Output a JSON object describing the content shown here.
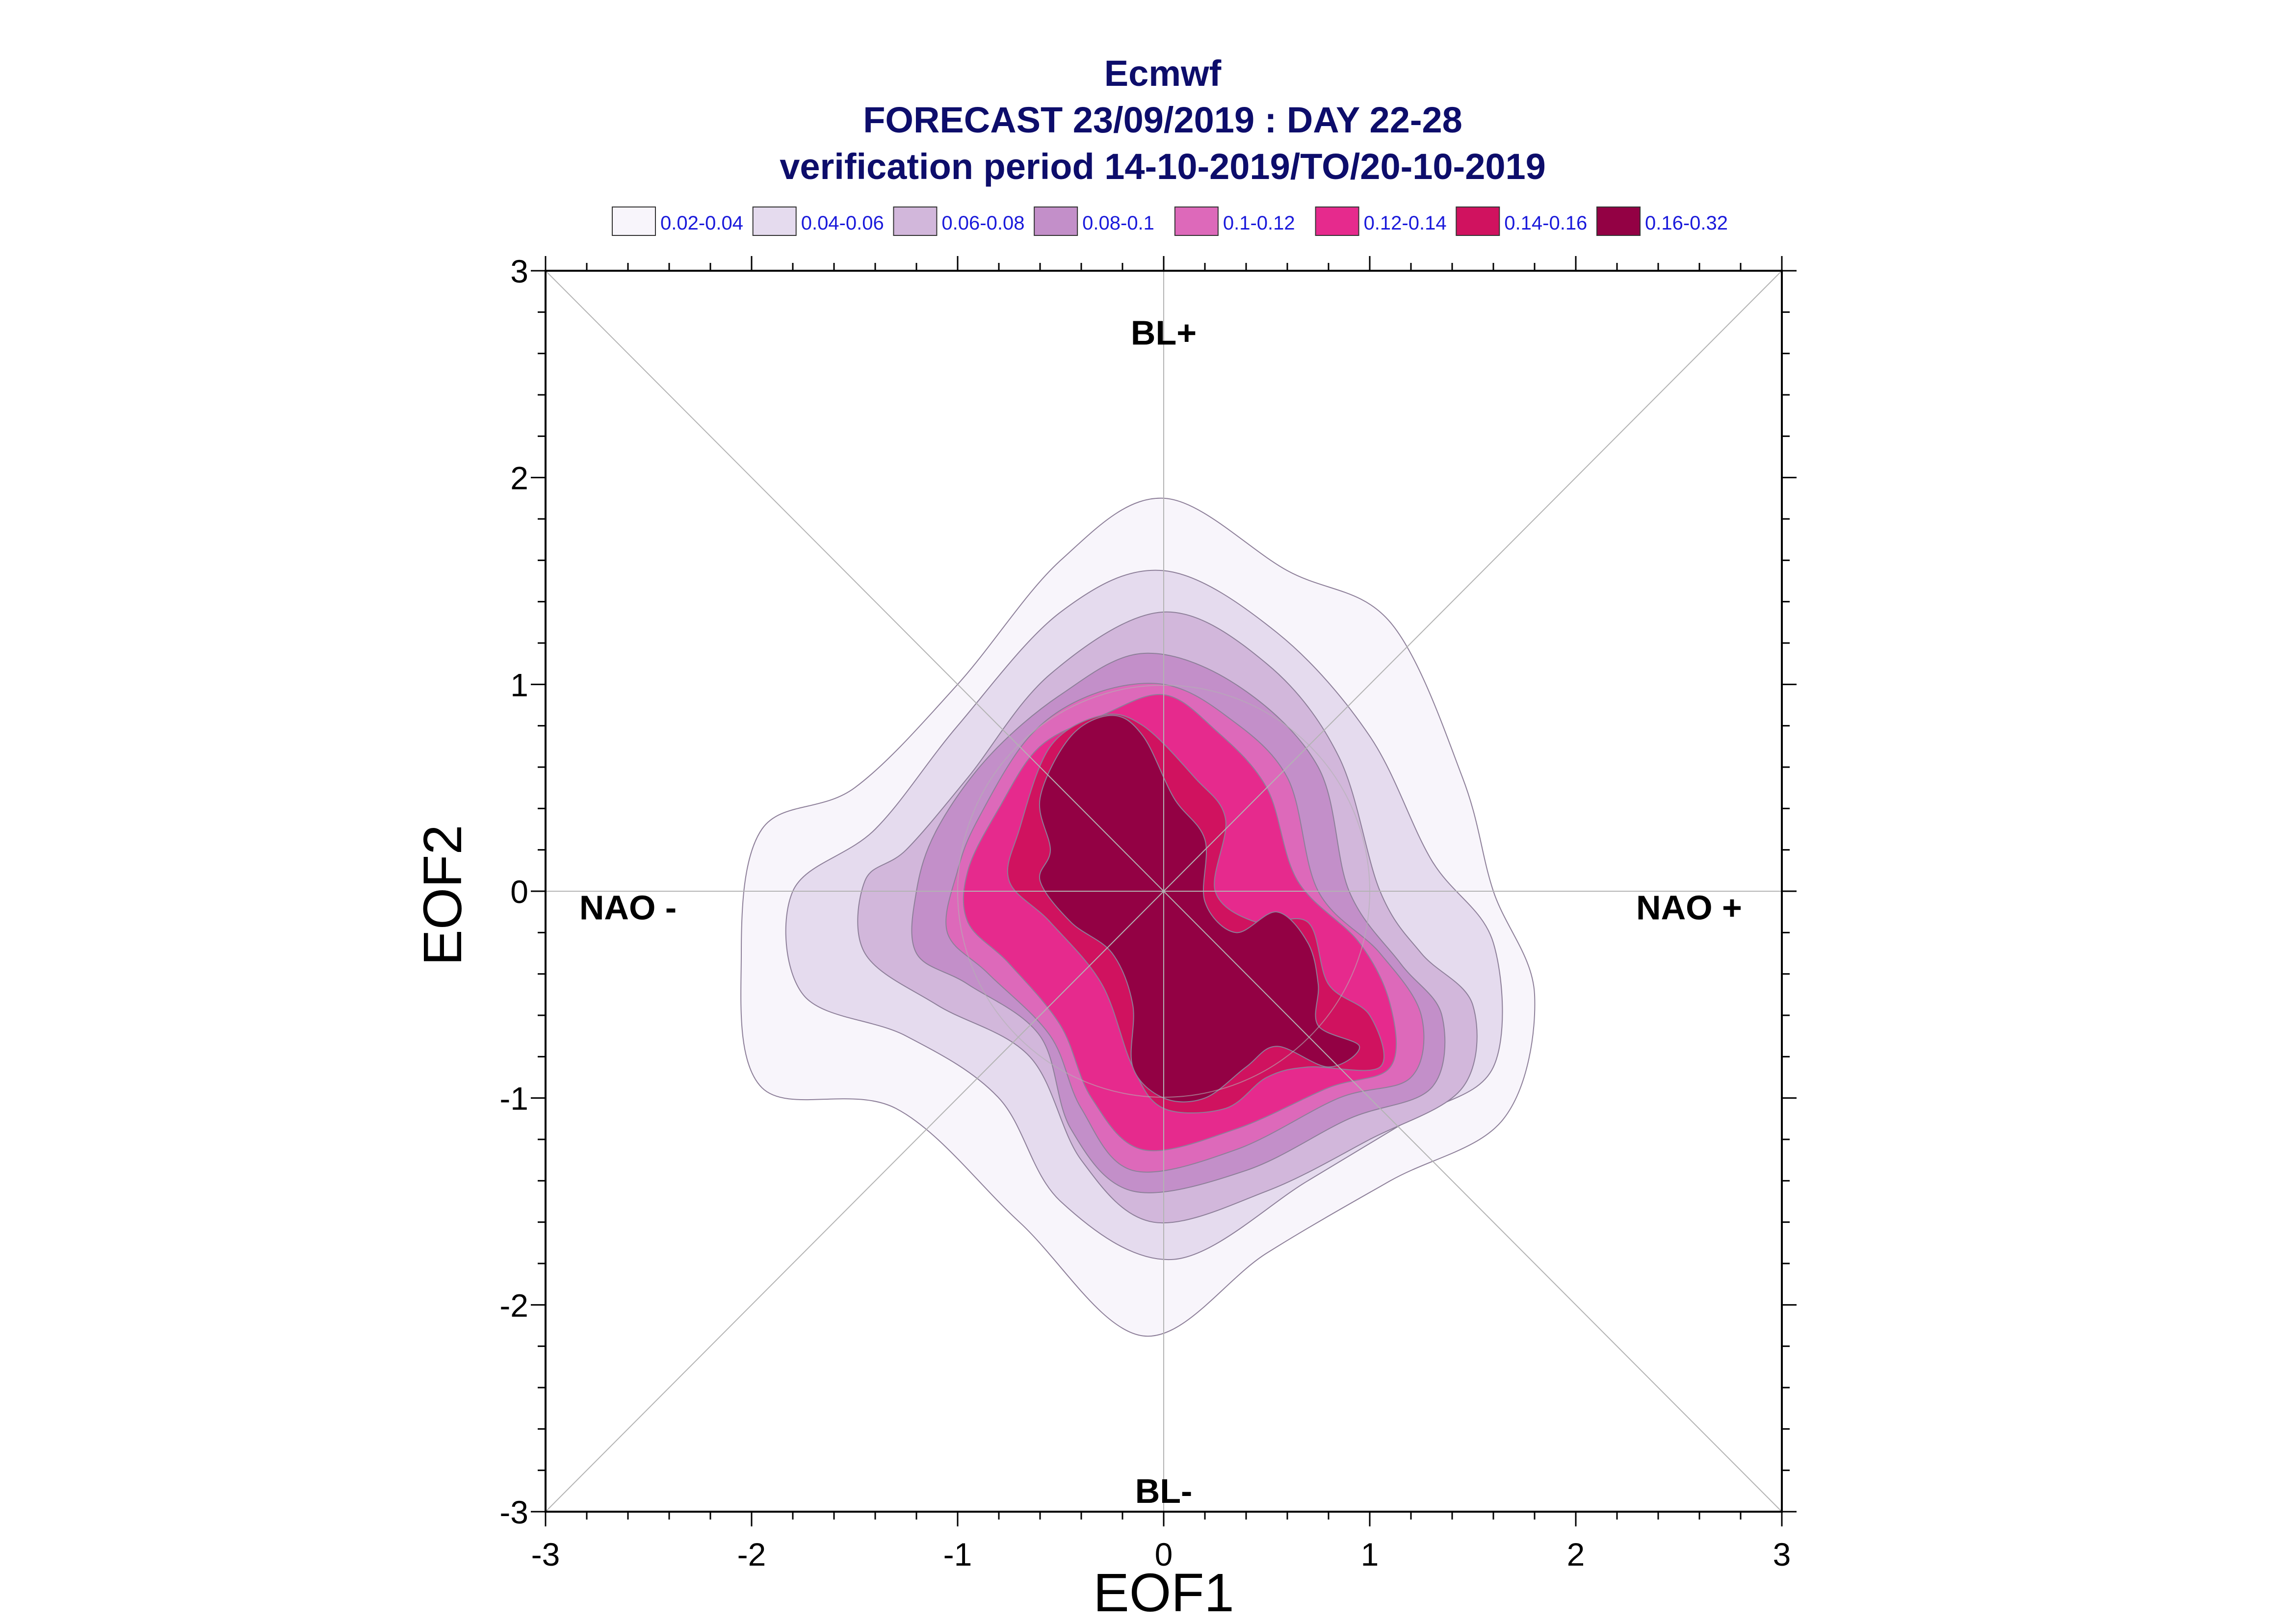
{
  "chart_data": {
    "type": "contour",
    "title_lines": [
      "Ecmwf",
      "FORECAST 23/09/2019 : DAY 22-28",
      "verification period 14-10-2019/TO/20-10-2019"
    ],
    "xlabel": "EOF1",
    "ylabel": "EOF2",
    "xlim": [
      -3,
      3
    ],
    "ylim": [
      -3,
      3
    ],
    "ticks": [
      -3,
      -2,
      -1,
      0,
      1,
      2,
      3
    ],
    "tick_labels": [
      "-3",
      "-2",
      "-1",
      "0",
      "1",
      "2",
      "3"
    ],
    "minor_tick_step": 0.2,
    "grid": "diagonals and zero lines",
    "regions": [
      {
        "label": "BL+",
        "x": 0,
        "y": 2.7
      },
      {
        "label": "BL-",
        "x": 0,
        "y": -2.9
      },
      {
        "label": "NAO -",
        "x": -2.6,
        "y": -0.08
      },
      {
        "label": "NAO +",
        "x": 2.55,
        "y": -0.08
      }
    ],
    "reference_circle_radius": 1.0,
    "legend_placement": "top",
    "levels": [
      {
        "label": "0.02-0.04",
        "color": "#f8f5fb",
        "contour": [
          [
            -1.5,
            0.5
          ],
          [
            -1.0,
            1.0
          ],
          [
            -0.5,
            1.6
          ],
          [
            0,
            1.9
          ],
          [
            0.6,
            1.55
          ],
          [
            1.1,
            1.3
          ],
          [
            1.45,
            0.55
          ],
          [
            1.6,
            0.0
          ],
          [
            1.8,
            -0.5
          ],
          [
            1.65,
            -1.1
          ],
          [
            1.1,
            -1.4
          ],
          [
            0.5,
            -1.75
          ],
          [
            -0.1,
            -2.15
          ],
          [
            -0.7,
            -1.6
          ],
          [
            -1.3,
            -1.05
          ],
          [
            -1.95,
            -0.95
          ],
          [
            -2.05,
            -0.3
          ],
          [
            -1.95,
            0.3
          ]
        ]
      },
      {
        "label": "0.04-0.06",
        "color": "#e5dbee",
        "contour": [
          [
            -1.4,
            0.3
          ],
          [
            -1.0,
            0.8
          ],
          [
            -0.5,
            1.35
          ],
          [
            0,
            1.55
          ],
          [
            0.55,
            1.25
          ],
          [
            1.0,
            0.75
          ],
          [
            1.3,
            0.15
          ],
          [
            1.6,
            -0.25
          ],
          [
            1.6,
            -0.85
          ],
          [
            1.2,
            -1.1
          ],
          [
            0.7,
            -1.4
          ],
          [
            0.05,
            -1.78
          ],
          [
            -0.5,
            -1.5
          ],
          [
            -0.8,
            -1.0
          ],
          [
            -1.25,
            -0.7
          ],
          [
            -1.75,
            -0.5
          ],
          [
            -1.8,
            0.0
          ]
        ]
      },
      {
        "label": "0.06-0.08",
        "color": "#d2b7db",
        "contour": [
          [
            -1.25,
            0.2
          ],
          [
            -0.95,
            0.55
          ],
          [
            -0.55,
            1.05
          ],
          [
            0,
            1.35
          ],
          [
            0.5,
            1.1
          ],
          [
            0.85,
            0.65
          ],
          [
            1.05,
            0.0
          ],
          [
            1.25,
            -0.3
          ],
          [
            1.5,
            -0.55
          ],
          [
            1.45,
            -0.95
          ],
          [
            1.0,
            -1.2
          ],
          [
            0.5,
            -1.45
          ],
          [
            -0.05,
            -1.6
          ],
          [
            -0.4,
            -1.3
          ],
          [
            -0.65,
            -0.8
          ],
          [
            -1.1,
            -0.55
          ],
          [
            -1.45,
            -0.3
          ],
          [
            -1.45,
            0.05
          ]
        ]
      },
      {
        "label": "0.08-0.1",
        "color": "#c38fc9",
        "contour": [
          [
            -1.1,
            0.3
          ],
          [
            -0.85,
            0.65
          ],
          [
            -0.5,
            0.95
          ],
          [
            -0.1,
            1.15
          ],
          [
            0.35,
            1.0
          ],
          [
            0.75,
            0.6
          ],
          [
            0.9,
            0.0
          ],
          [
            1.15,
            -0.35
          ],
          [
            1.35,
            -0.6
          ],
          [
            1.3,
            -0.95
          ],
          [
            0.9,
            -1.1
          ],
          [
            0.4,
            -1.35
          ],
          [
            -0.15,
            -1.45
          ],
          [
            -0.45,
            -1.15
          ],
          [
            -0.6,
            -0.7
          ],
          [
            -0.95,
            -0.45
          ],
          [
            -1.2,
            -0.3
          ],
          [
            -1.2,
            0.0
          ]
        ]
      },
      {
        "label": "0.1-0.12",
        "color": "#dd69ba",
        "contour": [
          [
            -0.9,
            0.35
          ],
          [
            -0.65,
            0.75
          ],
          [
            -0.35,
            0.95
          ],
          [
            0,
            1.0
          ],
          [
            0.3,
            0.85
          ],
          [
            0.6,
            0.55
          ],
          [
            0.75,
            0.0
          ],
          [
            1.05,
            -0.3
          ],
          [
            1.25,
            -0.6
          ],
          [
            1.2,
            -0.9
          ],
          [
            0.85,
            -1.0
          ],
          [
            0.35,
            -1.25
          ],
          [
            -0.15,
            -1.35
          ],
          [
            -0.4,
            -1.05
          ],
          [
            -0.55,
            -0.7
          ],
          [
            -0.85,
            -0.4
          ],
          [
            -1.05,
            -0.2
          ],
          [
            -1.0,
            0.1
          ]
        ]
      },
      {
        "label": "0.12-0.14",
        "color": "#e62a8d",
        "contour": [
          [
            -0.8,
            0.4
          ],
          [
            -0.6,
            0.7
          ],
          [
            -0.3,
            0.85
          ],
          [
            0,
            0.95
          ],
          [
            0.25,
            0.78
          ],
          [
            0.5,
            0.5
          ],
          [
            0.65,
            0.05
          ],
          [
            0.95,
            -0.25
          ],
          [
            1.1,
            -0.55
          ],
          [
            1.1,
            -0.85
          ],
          [
            0.8,
            -0.95
          ],
          [
            0.35,
            -1.15
          ],
          [
            -0.1,
            -1.25
          ],
          [
            -0.35,
            -1.0
          ],
          [
            -0.5,
            -0.65
          ],
          [
            -0.75,
            -0.35
          ],
          [
            -0.95,
            -0.15
          ],
          [
            -0.95,
            0.1
          ]
        ]
      },
      {
        "label": "0.14-0.16",
        "color": "#d0125f",
        "contour": [
          [
            -0.7,
            0.3
          ],
          [
            -0.55,
            0.7
          ],
          [
            -0.3,
            0.85
          ],
          [
            -0.1,
            0.8
          ],
          [
            0.15,
            0.55
          ],
          [
            0.3,
            0.35
          ],
          [
            0.25,
            0.0
          ],
          [
            0.45,
            -0.15
          ],
          [
            0.7,
            -0.15
          ],
          [
            0.8,
            -0.45
          ],
          [
            1.0,
            -0.6
          ],
          [
            1.05,
            -0.85
          ],
          [
            0.7,
            -0.85
          ],
          [
            0.5,
            -0.9
          ],
          [
            0.3,
            -1.05
          ],
          [
            0.0,
            -1.05
          ],
          [
            -0.15,
            -0.85
          ],
          [
            -0.3,
            -0.45
          ],
          [
            -0.55,
            -0.15
          ],
          [
            -0.75,
            0.05
          ]
        ]
      },
      {
        "label": "0.16-0.32",
        "color": "#930144",
        "contour": [
          [
            -0.55,
            0.2
          ],
          [
            -0.6,
            0.45
          ],
          [
            -0.45,
            0.75
          ],
          [
            -0.25,
            0.85
          ],
          [
            -0.1,
            0.75
          ],
          [
            0.05,
            0.45
          ],
          [
            0.2,
            0.25
          ],
          [
            0.2,
            -0.05
          ],
          [
            0.35,
            -0.2
          ],
          [
            0.55,
            -0.1
          ],
          [
            0.7,
            -0.25
          ],
          [
            0.75,
            -0.45
          ],
          [
            0.75,
            -0.65
          ],
          [
            0.95,
            -0.75
          ],
          [
            0.8,
            -0.85
          ],
          [
            0.55,
            -0.75
          ],
          [
            0.4,
            -0.85
          ],
          [
            0.2,
            -1.0
          ],
          [
            0.0,
            -1.0
          ],
          [
            -0.15,
            -0.85
          ],
          [
            -0.15,
            -0.55
          ],
          [
            -0.25,
            -0.3
          ],
          [
            -0.45,
            -0.15
          ],
          [
            -0.6,
            0.05
          ]
        ]
      }
    ]
  }
}
